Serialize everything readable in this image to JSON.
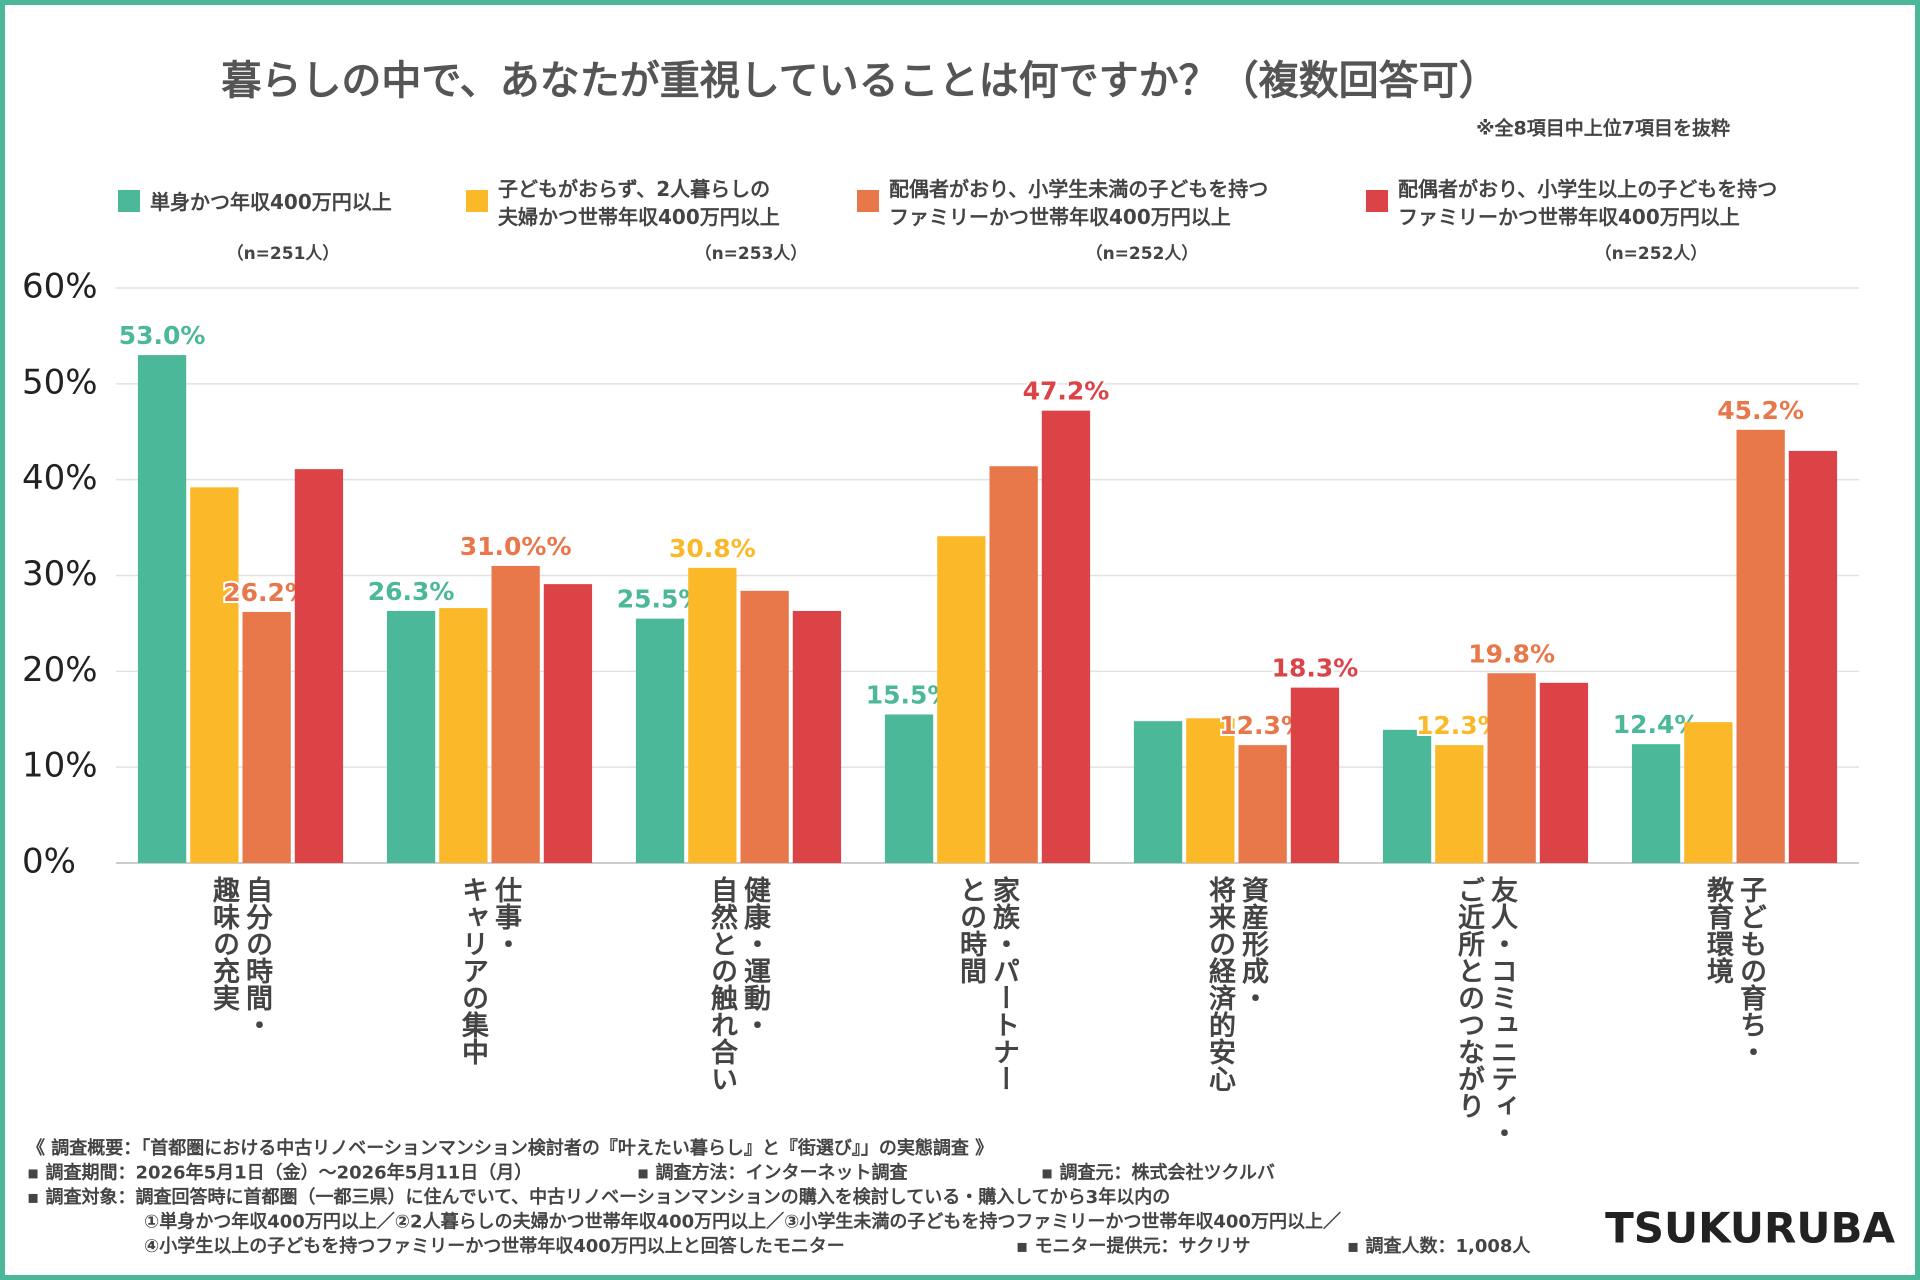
{
  "chart_data": {
    "type": "bar",
    "title": "暮らしの中で、あなたが重視していることは何ですか？（複数回答可）",
    "subtitle": "※全8項目中上位7項目を抜粋",
    "categories": [
      [
        "自分の時間・",
        "趣味の充実"
      ],
      [
        "仕事・",
        "キャリアの集中"
      ],
      [
        "健康・運動・",
        "自然との触れ合い"
      ],
      [
        "家族・パートナー",
        "との時間"
      ],
      [
        "資産形成・",
        "将来の経済的安心"
      ],
      [
        "友人・コミュニティ・",
        "ご近所とのつながり"
      ],
      [
        "子どもの育ち・",
        "教育環境"
      ]
    ],
    "series": [
      {
        "name": "単身かつ年収400万円以上",
        "n": "（n=251人）",
        "color": "#4cb89a",
        "values": [
          53.0,
          26.3,
          25.5,
          15.5,
          14.8,
          13.9,
          12.4
        ],
        "value_labels": [
          "53.0%",
          "26.3%",
          "25.5%",
          "15.5%",
          null,
          null,
          "12.4%"
        ]
      },
      {
        "name": "子どもがおらず、2人暮らしの\n夫婦かつ世帯年収400万円以上",
        "n": "（n=253人）",
        "color": "#fbb829",
        "values": [
          39.2,
          26.6,
          30.8,
          34.1,
          15.1,
          12.3,
          14.7
        ],
        "value_labels": [
          null,
          null,
          "30.8%",
          null,
          null,
          "12.3%",
          null
        ]
      },
      {
        "name": "配偶者がおり、小学生未満の子どもを持つ\nファミリーかつ世帯年収400万円以上",
        "n": "（n=252人）",
        "color": "#e8774a",
        "values": [
          26.2,
          31.0,
          28.4,
          41.4,
          12.3,
          19.8,
          45.2
        ],
        "value_labels": [
          "26.2%",
          "31.0%%",
          null,
          null,
          "12.3%",
          "19.8%",
          "45.2%"
        ]
      },
      {
        "name": "配偶者がおり、小学生以上の子どもを持つ\nファミリーかつ世帯年収400万円以上",
        "n": "（n=252人）",
        "color": "#dc4347",
        "values": [
          41.1,
          29.1,
          26.3,
          47.2,
          18.3,
          18.8,
          43.0
        ],
        "value_labels": [
          null,
          null,
          null,
          "47.2%",
          "18.3%",
          null,
          null
        ]
      }
    ],
    "ylim": [
      0,
      60
    ],
    "yticks": [
      {
        "value": 0,
        "label": "0%"
      },
      {
        "value": 10,
        "label": "10%"
      },
      {
        "value": 20,
        "label": "20%"
      },
      {
        "value": 30,
        "label": "30%"
      },
      {
        "value": 40,
        "label": "40%"
      },
      {
        "value": 50,
        "label": "50%"
      },
      {
        "value": 60,
        "label": "60%"
      }
    ],
    "grid": true
  },
  "notes": [
    [
      "《 調査概要：「首都圏における中古リノベーションマンション検討者の『叶えたい暮らし』と『街選び』」の実態調査 》"
    ],
    [
      "▪ 調査期間：2026年5月1日（金）～2026年5月11日（月）",
      "▪ 調査方法：インターネット調査",
      "▪ 調査元：株式会社ツクルバ"
    ],
    [
      "▪ 調査対象：調査回答時に首都圏（一都三県）に住んでいて、中古リノベーションマンションの購入を検討している・購入してから3年以内の"
    ],
    [
      "①単身かつ年収400万円以上／②2人暮らしの夫婦かつ世帯年収400万円以上／③小学生未満の子どもを持つファミリーかつ世帯年収400万円以上／"
    ],
    [
      "④小学生以上の子どもを持つファミリーかつ世帯年収400万円以上と回答したモニター",
      "▪ モニター提供元：サクリサ",
      "▪ 調査人数：1,008人"
    ]
  ],
  "brand": "TSUKURUBA"
}
